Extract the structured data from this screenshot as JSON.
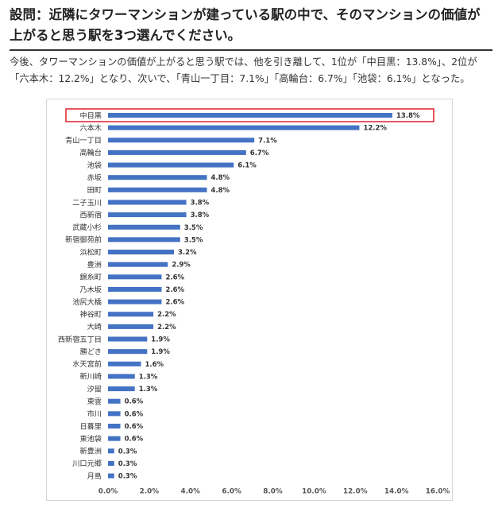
{
  "header": {
    "question": "設問：近隣にタワーマンションが建っている駅の中で、そのマンションの価値が上がると思う駅を3つ選んでください。",
    "summary": "今後、タワーマンションの価値が上がると思う駅では、他を引き離して、1位が「中目黒：13.8%」、2位が「六本木：12.2%」となり、次いで、「青山一丁目：7.1%」「高輪台：6.7%」「池袋：6.1%」となった。"
  },
  "chart_data": {
    "type": "bar",
    "orientation": "horizontal",
    "categories": [
      "中目黒",
      "六本木",
      "青山一丁目",
      "高輪台",
      "池袋",
      "赤坂",
      "田町",
      "二子玉川",
      "西新宿",
      "武蔵小杉",
      "新宿御苑前",
      "浜松町",
      "豊洲",
      "錦糸町",
      "乃木坂",
      "池尻大橋",
      "神谷町",
      "大崎",
      "西新宿五丁目",
      "勝どき",
      "水天宮前",
      "新川崎",
      "汐留",
      "東雲",
      "市川",
      "日暮里",
      "東池袋",
      "新豊洲",
      "川口元郷",
      "月島"
    ],
    "values": [
      13.8,
      12.2,
      7.1,
      6.7,
      6.1,
      4.8,
      4.8,
      3.8,
      3.8,
      3.5,
      3.5,
      3.2,
      2.9,
      2.6,
      2.6,
      2.6,
      2.2,
      2.2,
      1.9,
      1.9,
      1.6,
      1.3,
      1.3,
      0.6,
      0.6,
      0.6,
      0.6,
      0.3,
      0.3,
      0.3
    ],
    "value_labels": [
      "13.8%",
      "12.2%",
      "7.1%",
      "6.7%",
      "6.1%",
      "4.8%",
      "4.8%",
      "3.8%",
      "3.8%",
      "3.5%",
      "3.5%",
      "3.2%",
      "2.9%",
      "2.6%",
      "2.6%",
      "2.6%",
      "2.2%",
      "2.2%",
      "1.9%",
      "1.9%",
      "1.6%",
      "1.3%",
      "1.3%",
      "0.6%",
      "0.6%",
      "0.6%",
      "0.6%",
      "0.3%",
      "0.3%",
      "0.3%"
    ],
    "xlim": [
      0,
      16
    ],
    "xticks": [
      0,
      2,
      4,
      6,
      8,
      10,
      12,
      14,
      16
    ],
    "xtick_labels": [
      "0.0%",
      "2.0%",
      "4.0%",
      "6.0%",
      "8.0%",
      "10.0%",
      "12.0%",
      "14.0%",
      "16.0%"
    ],
    "highlighted_category": "中目黒",
    "bar_color": "#4472c4",
    "highlight_color": "#e0202a",
    "grid": false,
    "title": "",
    "xlabel": "",
    "ylabel": ""
  }
}
